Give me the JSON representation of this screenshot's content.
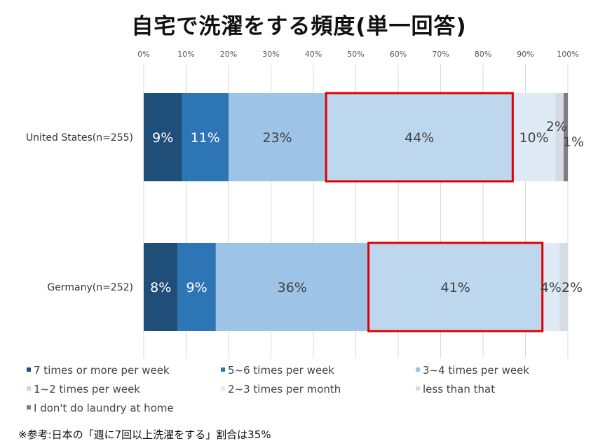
{
  "chart_data": {
    "type": "bar",
    "orientation": "horizontal",
    "stacked": true,
    "percent": true,
    "title": "自宅で洗濯をする頻度(単一回答)",
    "categories": [
      "United States(n=255)",
      "Germany(n=252)"
    ],
    "xlim": [
      0,
      100
    ],
    "x_ticks": [
      "0%",
      "10%",
      "20%",
      "30%",
      "40%",
      "50%",
      "60%",
      "70%",
      "80%",
      "90%",
      "100%"
    ],
    "grid": true,
    "legend_position": "bottom",
    "series": [
      {
        "name": "7 times or more per week",
        "color": "#1f4e79",
        "values": [
          9,
          8
        ],
        "labels": [
          "9%",
          "8%"
        ]
      },
      {
        "name": "5~6 times per week",
        "color": "#2e75b6",
        "values": [
          11,
          9
        ],
        "labels": [
          "11%",
          "9%"
        ]
      },
      {
        "name": "3~4 times per week",
        "color": "#9dc3e6",
        "values": [
          23,
          36
        ],
        "labels": [
          "23%",
          "36%"
        ]
      },
      {
        "name": "1~2 times per week",
        "color": "#bdd7ee",
        "values": [
          44,
          41
        ],
        "labels": [
          "44%",
          "41%"
        ]
      },
      {
        "name": "2~3 times per month",
        "color": "#deebf7",
        "values": [
          10,
          4
        ],
        "labels": [
          "10%",
          "4%"
        ]
      },
      {
        "name": "less than that",
        "color": "#d6dce4",
        "values": [
          2,
          2
        ],
        "labels": [
          "2%",
          "2%"
        ]
      },
      {
        "name": "I don't do laundry at home",
        "color": "#7f7f7f",
        "values": [
          1,
          0
        ],
        "labels": [
          "1%",
          ""
        ]
      }
    ],
    "highlight": {
      "series_index": 3,
      "color": "#e00000"
    }
  },
  "footnote": "※参考:日本の「週に7回以上洗濯をする」割合は35%"
}
